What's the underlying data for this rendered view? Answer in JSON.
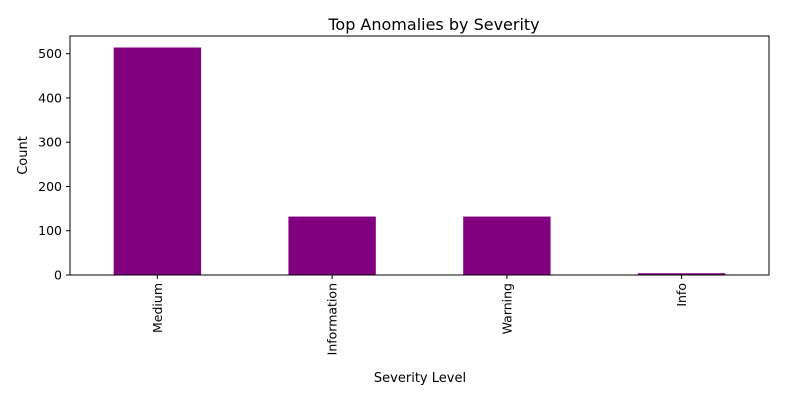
{
  "chart_data": {
    "type": "bar",
    "title": "Top Anomalies by Severity",
    "xlabel": "Severity Level",
    "ylabel": "Count",
    "categories": [
      "Medium",
      "Information",
      "Warning",
      "Info"
    ],
    "values": [
      514,
      132,
      132,
      4
    ],
    "ylim": [
      0,
      540
    ],
    "yticks": [
      0,
      100,
      200,
      300,
      400,
      500
    ],
    "bar_color": "#800080",
    "grid": false,
    "legend": "none"
  }
}
